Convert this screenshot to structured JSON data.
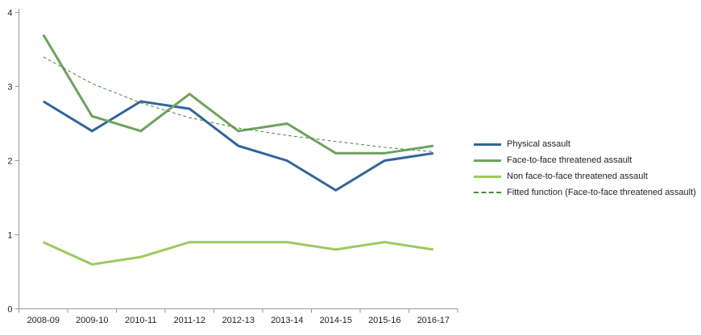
{
  "chart_data": {
    "type": "line",
    "title": "",
    "xlabel": "",
    "ylabel": "",
    "categories": [
      "2008-09",
      "2009-10",
      "2010-11",
      "2011-12",
      "2012-13",
      "2013-14",
      "2014-15",
      "2015-16",
      "2016-17"
    ],
    "series": [
      {
        "name": "Physical assault",
        "color": "#31659c",
        "width": 3,
        "dash": "",
        "values": [
          2.8,
          2.4,
          2.8,
          2.7,
          2.2,
          2.0,
          1.6,
          2.0,
          2.1
        ]
      },
      {
        "name": "Face-to-face threatened assault",
        "color": "#6fa15c",
        "width": 3,
        "dash": "",
        "values": [
          3.7,
          2.6,
          2.4,
          2.9,
          2.4,
          2.5,
          2.1,
          2.1,
          2.2
        ]
      },
      {
        "name": "Non face-to-face threatened assault",
        "color": "#9cca5e",
        "width": 3,
        "dash": "",
        "values": [
          0.9,
          0.6,
          0.7,
          0.9,
          0.9,
          0.9,
          0.8,
          0.9,
          0.8
        ]
      },
      {
        "name": "Fitted function (Face-to-face threatened assault)",
        "color": "#4e8547",
        "width": 1,
        "dash": "4 3",
        "values": [
          3.4,
          3.04,
          2.78,
          2.58,
          2.44,
          2.34,
          2.26,
          2.18,
          2.12
        ]
      }
    ],
    "ylim": [
      0,
      4
    ],
    "yticks": [
      0,
      1,
      2,
      3,
      4
    ],
    "grid": false,
    "legend_position": "right",
    "axis_color": "#9a9a9a",
    "text_color": "#1f1f1f"
  }
}
